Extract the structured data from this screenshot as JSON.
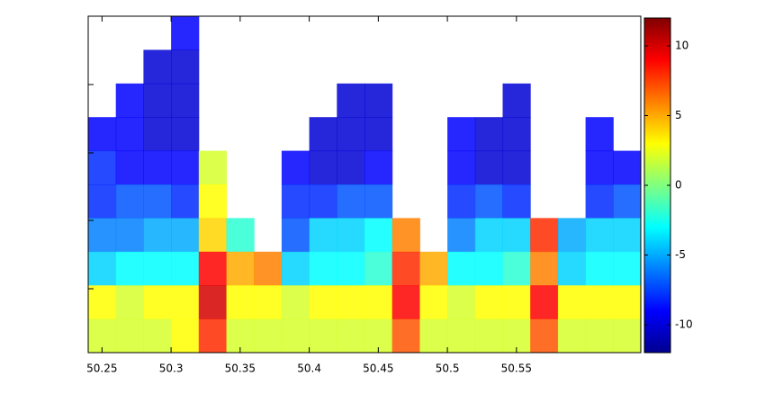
{
  "chart_data": {
    "type": "heatmap",
    "x": [
      50.25,
      50.27,
      50.29,
      50.31,
      50.33,
      50.35,
      50.37,
      50.39,
      50.41,
      50.43,
      50.45,
      50.47,
      50.49,
      50.51,
      50.53,
      50.55,
      50.57,
      50.59,
      50.61,
      50.63
    ],
    "values": [
      [
        null,
        null,
        null,
        -9,
        null,
        null,
        null,
        null,
        null,
        null,
        null,
        null,
        null,
        null,
        null,
        null,
        null,
        null,
        null,
        null
      ],
      [
        null,
        null,
        -10,
        -10,
        null,
        null,
        null,
        null,
        null,
        null,
        null,
        null,
        null,
        null,
        null,
        null,
        null,
        null,
        null,
        null
      ],
      [
        null,
        -9,
        -10,
        -10,
        null,
        null,
        null,
        null,
        null,
        -10,
        -10,
        null,
        null,
        null,
        null,
        -10,
        null,
        null,
        null,
        null
      ],
      [
        -9,
        -9,
        -10,
        -10,
        null,
        null,
        null,
        null,
        -10,
        -10,
        -10,
        null,
        null,
        -9,
        -10,
        -10,
        null,
        null,
        -9,
        null
      ],
      [
        -8,
        -9,
        -9,
        -9,
        2,
        null,
        null,
        -9,
        -10,
        -10,
        -9,
        null,
        null,
        -9,
        -10,
        -10,
        null,
        null,
        -9,
        -9
      ],
      [
        -8,
        -7,
        -7,
        -8,
        3,
        null,
        null,
        -8,
        -8,
        -7,
        -7,
        null,
        null,
        -8,
        -7,
        -8,
        null,
        null,
        -8,
        -7
      ],
      [
        -6,
        -6,
        -5,
        -5,
        4,
        -2,
        null,
        -7,
        -4,
        -4,
        -3,
        6,
        null,
        -6,
        -4,
        -4,
        8,
        -5,
        -4,
        -4
      ],
      [
        -4,
        -3,
        -3,
        -3,
        9,
        5,
        6,
        -4,
        -3,
        -3,
        -2,
        8,
        5,
        -3,
        -3,
        -2,
        6,
        -4,
        -3,
        -3
      ],
      [
        3,
        2,
        3,
        3,
        10,
        3,
        3,
        2,
        3,
        3,
        3,
        9,
        3,
        2,
        3,
        3,
        9,
        3,
        3,
        3
      ],
      [
        2,
        2,
        2,
        3,
        8,
        2,
        2,
        2,
        2,
        2,
        2,
        7,
        2,
        2,
        2,
        2,
        7,
        2,
        2,
        2
      ]
    ],
    "xlim": [
      50.24,
      50.64
    ],
    "xticks": [
      50.25,
      50.3,
      50.35,
      50.4,
      50.45,
      50.5,
      50.55
    ],
    "clim": [
      -12,
      12
    ],
    "cticks": [
      10,
      5,
      0,
      -5,
      -10
    ],
    "colormap": "jet",
    "grid": false
  }
}
